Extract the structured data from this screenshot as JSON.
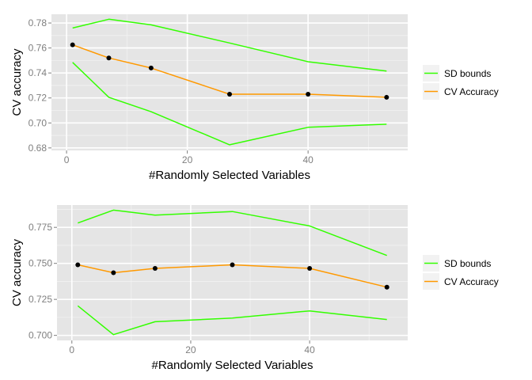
{
  "colors": {
    "panel_bg": "#e5e5e5",
    "grid_major": "#ffffff",
    "grid_minor": "#f2f2f2",
    "tick": "#7f7f7f",
    "sd_bounds": "#33ff00",
    "cv_accuracy": "#ff9900",
    "point": "#000000",
    "legend_key_bg": "#f2f2f2"
  },
  "chart_data": [
    {
      "type": "line",
      "title": "",
      "xlabel": "#Randomly Selected Variables",
      "ylabel": "CV accuracy",
      "xlim": [
        -2.5,
        56.5
      ],
      "ylim": [
        0.678,
        0.787
      ],
      "x_ticks": [
        0,
        20,
        40
      ],
      "x_tick_labels": [
        "0",
        "20",
        "40"
      ],
      "y_ticks": [
        0.68,
        0.7,
        0.72,
        0.74,
        0.76,
        0.78
      ],
      "y_tick_labels": [
        "0.68",
        "0.70",
        "0.72",
        "0.74",
        "0.76",
        "0.78"
      ],
      "grid": true,
      "legend_position": "right",
      "x": [
        1,
        7,
        14,
        27,
        40,
        53
      ],
      "series": [
        {
          "name": "SD bounds",
          "role": "upper",
          "values": [
            0.776,
            0.783,
            0.7785,
            0.764,
            0.749,
            0.7415
          ]
        },
        {
          "name": "SD bounds",
          "role": "lower",
          "values": [
            0.7485,
            0.7205,
            0.709,
            0.6825,
            0.6965,
            0.699
          ]
        },
        {
          "name": "CV Accuracy",
          "role": "mean",
          "values": [
            0.7625,
            0.752,
            0.744,
            0.723,
            0.723,
            0.7205
          ],
          "points": true
        }
      ],
      "legend": [
        "SD bounds",
        "CV Accuracy"
      ]
    },
    {
      "type": "line",
      "title": "",
      "xlabel": "#Randomly Selected Variables",
      "ylabel": "CV accuracy",
      "xlim": [
        -2.5,
        56.5
      ],
      "ylim": [
        0.6965,
        0.7905
      ],
      "x_ticks": [
        0,
        20,
        40
      ],
      "x_tick_labels": [
        "0",
        "20",
        "40"
      ],
      "y_ticks": [
        0.7,
        0.725,
        0.75,
        0.775
      ],
      "y_tick_labels": [
        "0.700",
        "0.725",
        "0.750",
        "0.775"
      ],
      "grid": true,
      "legend_position": "right",
      "x": [
        1,
        7,
        14,
        27,
        40,
        53
      ],
      "series": [
        {
          "name": "SD bounds",
          "role": "upper",
          "values": [
            0.778,
            0.787,
            0.7835,
            0.786,
            0.776,
            0.7555
          ]
        },
        {
          "name": "SD bounds",
          "role": "lower",
          "values": [
            0.7205,
            0.7005,
            0.7095,
            0.712,
            0.717,
            0.711
          ]
        },
        {
          "name": "CV Accuracy",
          "role": "mean",
          "values": [
            0.749,
            0.7435,
            0.7465,
            0.749,
            0.7465,
            0.7335
          ],
          "points": true
        }
      ],
      "legend": [
        "SD bounds",
        "CV Accuracy"
      ]
    }
  ]
}
